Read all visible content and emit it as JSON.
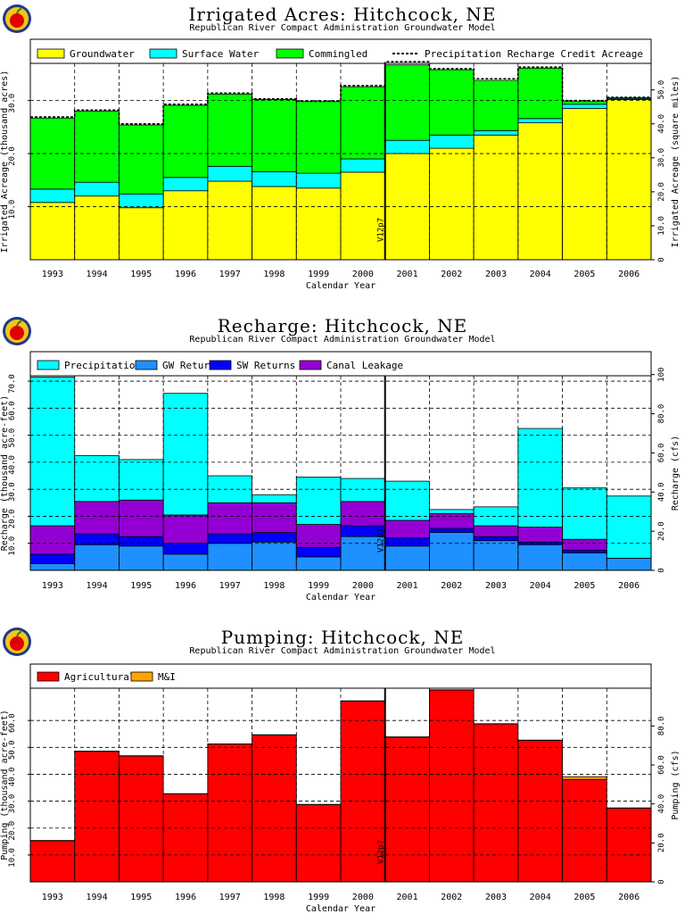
{
  "chart_data": [
    {
      "type": "bar",
      "title": "Irrigated Acres: Hitchcock, NE",
      "subtitle": "Republican River Compact Administration Groundwater Model",
      "xlabel": "Calendar Year",
      "ylabel": "Irrigated Acreage (thousand acres)",
      "y2label": "Irrigated Acreage (square miles)",
      "categories": [
        "1993",
        "1994",
        "1995",
        "1996",
        "1997",
        "1998",
        "1999",
        "2000",
        "2001",
        "2002",
        "2003",
        "2004",
        "2005",
        "2006"
      ],
      "ylim": [
        0,
        37
      ],
      "yticks": [
        10,
        20,
        30
      ],
      "ytick_labels": [
        "10.0",
        "20.0",
        "30.0"
      ],
      "y2lim": [
        0,
        57.8
      ],
      "y2ticks": [
        0,
        10,
        20,
        30,
        40,
        50
      ],
      "y2tick_labels": [
        "0",
        "10.0",
        "20.0",
        "30.0",
        "40.0",
        "50.0"
      ],
      "stacked": true,
      "marker_label": "V12p7",
      "marker_after_index": 7,
      "legend": [
        "Groundwater",
        "Surface Water",
        "Commingled",
        "Precipitation Recharge Credit Acreage"
      ],
      "series": [
        {
          "name": "Groundwater",
          "color": "#ffff00",
          "values": [
            10.8,
            12.0,
            9.8,
            13.0,
            14.8,
            13.8,
            13.5,
            16.5,
            20.0,
            21.0,
            23.5,
            25.8,
            28.5,
            30.2
          ]
        },
        {
          "name": "Surface Water",
          "color": "#00ffff",
          "values": [
            2.5,
            2.6,
            2.6,
            2.5,
            2.8,
            2.8,
            2.8,
            2.5,
            2.5,
            2.5,
            0.8,
            0.8,
            0.8,
            0.2
          ]
        },
        {
          "name": "Commingled",
          "color": "#00ff00",
          "values": [
            13.4,
            13.4,
            13.0,
            13.6,
            13.6,
            13.6,
            13.5,
            13.6,
            14.2,
            12.3,
            9.5,
            9.5,
            0.5,
            0.1
          ]
        }
      ],
      "line_series": {
        "name": "Precipitation Recharge Credit Acreage",
        "values": [
          26.9,
          28.2,
          25.6,
          29.3,
          31.4,
          30.3,
          29.9,
          32.8,
          37.3,
          36.0,
          34.1,
          36.3,
          30.0,
          30.6
        ]
      }
    },
    {
      "type": "bar",
      "title": "Recharge: Hitchcock, NE",
      "subtitle": "Republican River Compact Administration Groundwater Model",
      "xlabel": "Calendar Year",
      "ylabel": "Recharge (thousand acre-feet)",
      "y2label": "Recharge (cfs)",
      "categories": [
        "1993",
        "1994",
        "1995",
        "1996",
        "1997",
        "1998",
        "1999",
        "2000",
        "2001",
        "2002",
        "2003",
        "2004",
        "2005",
        "2006"
      ],
      "ylim": [
        0,
        72
      ],
      "yticks": [
        10,
        20,
        30,
        40,
        50,
        60,
        70
      ],
      "ytick_labels": [
        "10.0",
        "20.0",
        "30.0",
        "40.0",
        "50.0",
        "60.0",
        "70.0"
      ],
      "y2lim": [
        0,
        99.4
      ],
      "y2ticks": [
        0,
        20,
        40,
        60,
        80,
        100
      ],
      "y2tick_labels": [
        "0",
        "20.0",
        "40.0",
        "60.0",
        "80.0",
        "100"
      ],
      "stacked": true,
      "marker_label": "V12p7",
      "marker_after_index": 7,
      "legend": [
        "Precipitation",
        "GW Returns",
        "SW Returns",
        "Canal Leakage"
      ],
      "series": [
        {
          "name": "GW Returns",
          "color": "#1e90ff",
          "values": [
            2.5,
            9.5,
            9.0,
            6.0,
            10.0,
            10.5,
            5.0,
            12.5,
            9.0,
            14.0,
            11.0,
            9.5,
            6.5,
            4.5
          ]
        },
        {
          "name": "SW Returns",
          "color": "#0000ff",
          "values": [
            3.5,
            4.0,
            3.5,
            4.0,
            3.5,
            3.5,
            3.5,
            4.0,
            3.0,
            1.5,
            1.5,
            1.0,
            1.0,
            0.0
          ]
        },
        {
          "name": "Canal Leakage",
          "color": "#9400d3",
          "values": [
            10.5,
            12.0,
            13.5,
            10.5,
            11.5,
            11.0,
            8.5,
            9.0,
            6.5,
            5.5,
            4.0,
            5.5,
            4.0,
            0.0
          ]
        },
        {
          "name": "Precipitation",
          "color": "#00ffff",
          "values": [
            55.0,
            17.0,
            15.0,
            45.0,
            10.0,
            3.0,
            17.5,
            8.5,
            14.5,
            1.5,
            7.0,
            36.5,
            19.0,
            23.0
          ]
        }
      ]
    },
    {
      "type": "bar",
      "title": "Pumping: Hitchcock, NE",
      "subtitle": "Republican River Compact Administration Groundwater Model",
      "xlabel": "Calendar Year",
      "ylabel": "Pumping (thousand acre-feet)",
      "y2label": "Pumping (cfs)",
      "categories": [
        "1993",
        "1994",
        "1995",
        "1996",
        "1997",
        "1998",
        "1999",
        "2000",
        "2001",
        "2002",
        "2003",
        "2004",
        "2005",
        "2006"
      ],
      "ylim": [
        0,
        72
      ],
      "yticks": [
        10,
        20,
        30,
        40,
        50,
        60
      ],
      "ytick_labels": [
        "10.0",
        "20.0",
        "30.0",
        "40.0",
        "50.0",
        "60.0"
      ],
      "y2lim": [
        0,
        99.4
      ],
      "y2ticks": [
        0,
        20,
        40,
        60,
        80
      ],
      "y2tick_labels": [
        "0",
        "20.0",
        "40.0",
        "60.0",
        "80.0"
      ],
      "stacked": true,
      "marker_label": "V12p7",
      "marker_after_index": 7,
      "legend": [
        "Agricultural",
        "M&I"
      ],
      "series": [
        {
          "name": "Agricultural",
          "color": "#ff0000",
          "values": [
            15.3,
            48.5,
            46.8,
            32.7,
            51.2,
            54.6,
            28.7,
            67.2,
            53.8,
            71.3,
            58.7,
            52.6,
            38.1,
            27.4
          ]
        },
        {
          "name": "M&I",
          "color": "#ffa500",
          "values": [
            0.1,
            0.1,
            0.1,
            0.1,
            0.1,
            0.1,
            0.1,
            0.1,
            0.1,
            0.1,
            0.1,
            0.1,
            1.0,
            0.1
          ]
        }
      ]
    }
  ]
}
